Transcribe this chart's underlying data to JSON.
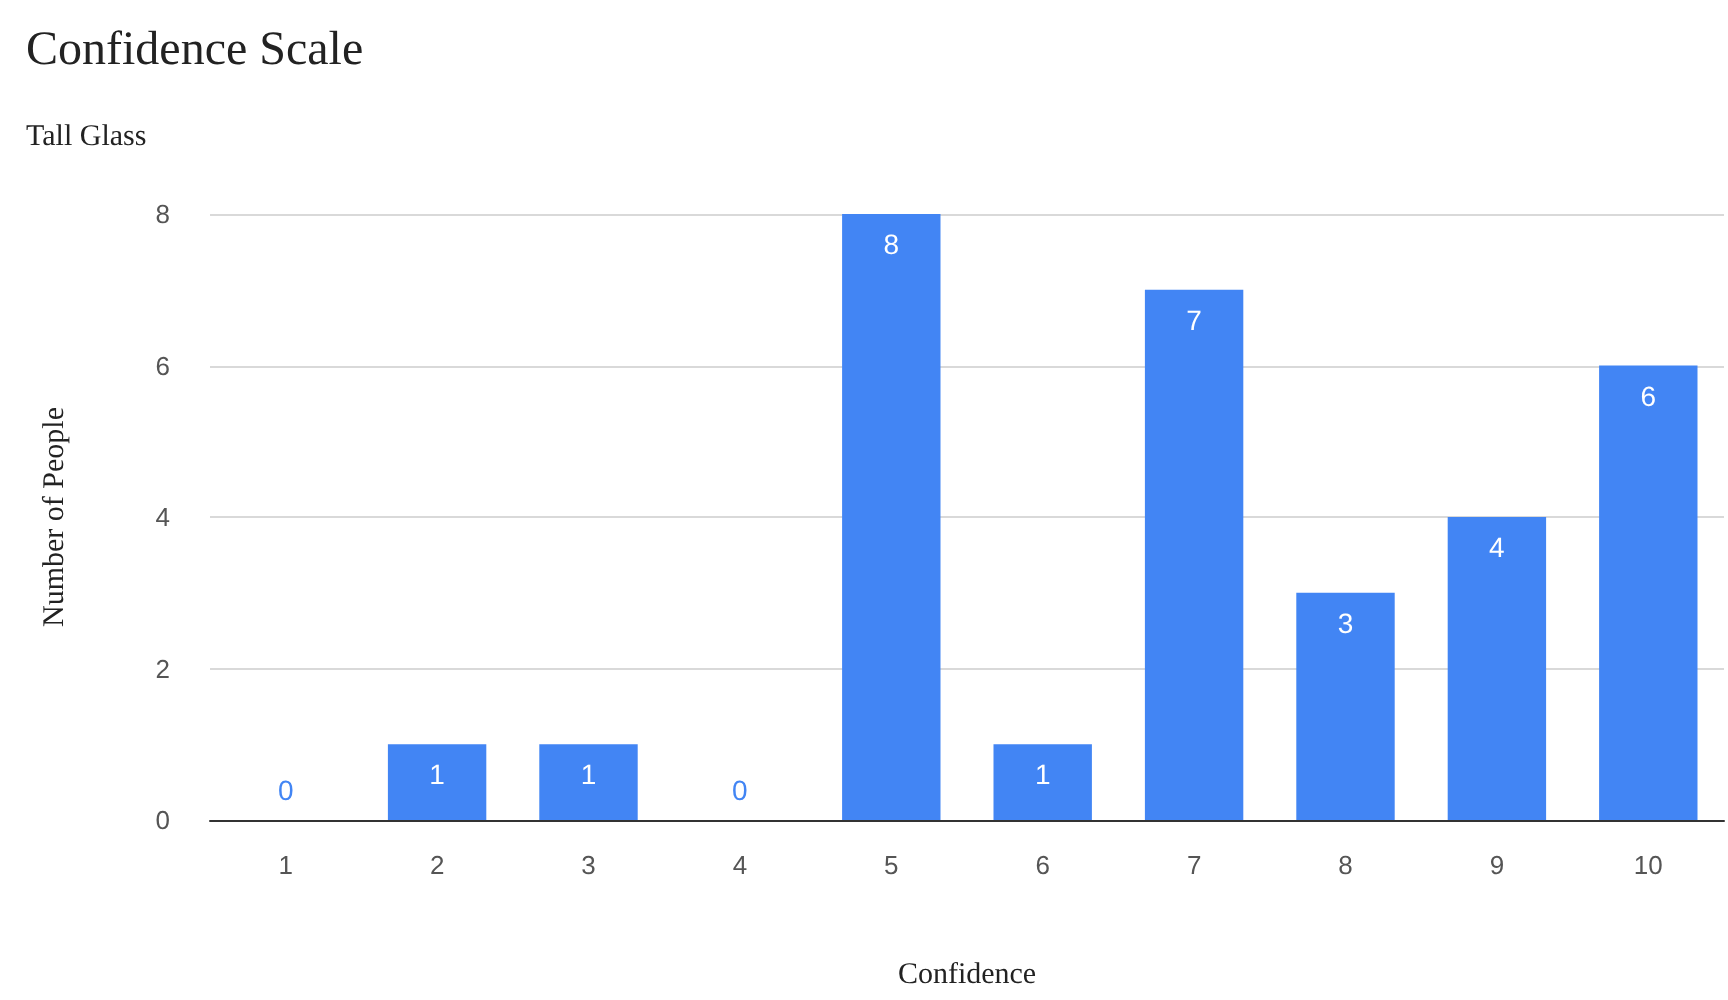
{
  "chart_data": {
    "type": "bar",
    "title": "Confidence Scale",
    "subtitle": "Tall Glass",
    "xlabel": "Confidence",
    "ylabel": "Number of People",
    "categories": [
      "1",
      "2",
      "3",
      "4",
      "5",
      "6",
      "7",
      "8",
      "9",
      "10"
    ],
    "values": [
      0,
      1,
      1,
      0,
      8,
      1,
      7,
      3,
      4,
      6
    ],
    "color": "#4285f4",
    "ylim": [
      0,
      8
    ],
    "yticks": [
      0,
      2,
      4,
      6,
      8
    ],
    "grid": "y",
    "data_labels": true
  }
}
